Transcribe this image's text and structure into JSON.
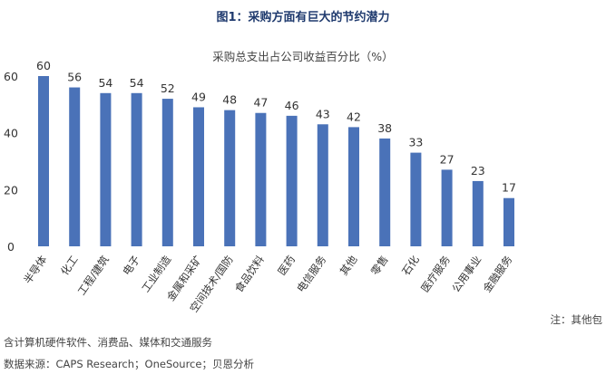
{
  "figure": {
    "title": "图1：采购方面有巨大的节约潜力",
    "note": "注：其他包",
    "footnote": "含计算机硬件软件、消费品、媒体和交通服务",
    "source": "数据来源：CAPS Research；OneSource；贝恩分析"
  },
  "chart_data": {
    "type": "bar",
    "title": "采购总支出占公司收益百分比（%）",
    "categories": [
      "半导体",
      "化工",
      "工程/建筑",
      "电子",
      "工业制造",
      "金属和采矿",
      "空间技术/国防",
      "食品饮料",
      "医药",
      "电信服务",
      "其他",
      "零售",
      "石化",
      "医疗服务",
      "公用事业",
      "金融服务"
    ],
    "values": [
      60,
      56,
      54,
      54,
      52,
      49,
      48,
      47,
      46,
      43,
      42,
      38,
      33,
      27,
      23,
      17
    ],
    "yticks": [
      0,
      20,
      40,
      60
    ],
    "ylim": [
      0,
      70
    ],
    "bar_color": "#4a72b8",
    "grid": false,
    "legend": "none"
  }
}
